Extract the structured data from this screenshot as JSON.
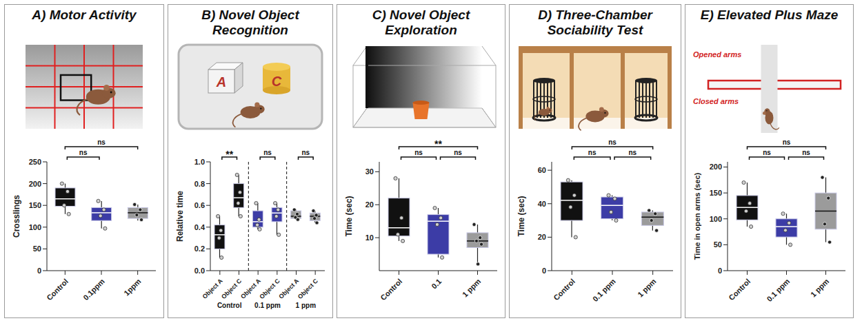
{
  "chart_data": [
    {
      "type": "box",
      "title": "A) Motor Activity",
      "y_label": "Crosslings",
      "categories": [
        "Control",
        "0.1ppm",
        "1ppm"
      ],
      "colors": [
        "#111111",
        "#3c3ca6",
        "#9b9b9b"
      ],
      "min": [
        130,
        97,
        115
      ],
      "q1": [
        148,
        115,
        120
      ],
      "median": [
        165,
        133,
        133
      ],
      "q3": [
        190,
        145,
        145
      ],
      "max": [
        200,
        160,
        152
      ],
      "points": [
        [
          200,
          182,
          150,
          130
        ],
        [
          160,
          140,
          126,
          97
        ],
        [
          152,
          140,
          128,
          117
        ]
      ],
      "ylim": [
        0,
        250
      ],
      "yticks": [
        0,
        50,
        100,
        150,
        200,
        250
      ],
      "comparisons": [
        {
          "pair": [
            0,
            1
          ],
          "label": "ns"
        },
        {
          "pair": [
            0,
            2
          ],
          "label": "ns"
        }
      ]
    },
    {
      "type": "box",
      "title": "B) Novel Object Recognition",
      "y_label": "Relative time",
      "illustration_labels": [
        "A",
        "C"
      ],
      "categories": [
        "Object A",
        "Object C",
        "Object A",
        "Object C",
        "Object A",
        "Object C"
      ],
      "groups": [
        "Control",
        "0.1 ppm",
        "1 ppm"
      ],
      "colors": [
        "#111111",
        "#111111",
        "#3c3ca6",
        "#3c3ca6",
        "#9b9b9b",
        "#9b9b9b"
      ],
      "min": [
        0.12,
        0.5,
        0.38,
        0.33,
        0.47,
        0.44
      ],
      "q1": [
        0.2,
        0.58,
        0.4,
        0.45,
        0.48,
        0.46
      ],
      "median": [
        0.33,
        0.67,
        0.45,
        0.53,
        0.5,
        0.5
      ],
      "q3": [
        0.42,
        0.8,
        0.55,
        0.58,
        0.55,
        0.53
      ],
      "max": [
        0.5,
        0.88,
        0.62,
        0.62,
        0.56,
        0.55
      ],
      "points": [
        [
          0.5,
          0.37,
          0.3,
          0.12
        ],
        [
          0.88,
          0.72,
          0.62,
          0.5
        ],
        [
          0.62,
          0.47,
          0.42,
          0.38
        ],
        [
          0.62,
          0.56,
          0.5,
          0.33
        ],
        [
          0.56,
          0.52,
          0.49,
          0.47
        ],
        [
          0.55,
          0.51,
          0.48,
          0.44
        ]
      ],
      "ylim": [
        0,
        1
      ],
      "yticks": [
        {
          "value": 0,
          "label": "0.0"
        },
        0.2,
        0.4,
        0.6,
        0.8,
        {
          "value": 1,
          "label": "1.0"
        }
      ],
      "comparisons": [
        {
          "pair": [
            0,
            1
          ],
          "label": "**"
        },
        {
          "pair": [
            2,
            3
          ],
          "label": "ns"
        },
        {
          "pair": [
            4,
            5
          ],
          "label": "ns"
        }
      ]
    },
    {
      "type": "box",
      "title": "C) Novel Object Exploration",
      "y_label": "Time (sec)",
      "categories": [
        "Control",
        "0.1",
        "1 ppm"
      ],
      "colors": [
        "#111111",
        "#3c3ca6",
        "#9b9b9b"
      ],
      "min": [
        9,
        4,
        2
      ],
      "q1": [
        10.5,
        5,
        7
      ],
      "median": [
        13,
        15,
        9
      ],
      "q3": [
        22,
        17,
        11.5
      ],
      "max": [
        28,
        19,
        14
      ],
      "points": [
        [
          28,
          16,
          11,
          9
        ],
        [
          19,
          16,
          14,
          4
        ],
        [
          14,
          10,
          9,
          8,
          2
        ]
      ],
      "ylim": [
        0,
        33
      ],
      "yticks": [
        10,
        20,
        30
      ],
      "comparisons": [
        {
          "pair": [
            0,
            1
          ],
          "label": "ns"
        },
        {
          "pair": [
            1,
            2
          ],
          "label": "ns"
        },
        {
          "pair": [
            0,
            2
          ],
          "label": "**"
        }
      ]
    },
    {
      "type": "box",
      "title": "D) Three-Chamber Sociability Test",
      "y_label": "Time (sec)",
      "categories": [
        "Control",
        "0.1 ppm",
        "1 ppm"
      ],
      "colors": [
        "#111111",
        "#3c3ca6",
        "#9b9b9b"
      ],
      "min": [
        20,
        30,
        24
      ],
      "q1": [
        30,
        31,
        27
      ],
      "median": [
        42,
        39,
        32
      ],
      "q3": [
        53,
        44,
        35
      ],
      "max": [
        54,
        45,
        36
      ],
      "points": [
        [
          54,
          45,
          38,
          20
        ],
        [
          45,
          43,
          35,
          30
        ],
        [
          36,
          34,
          30,
          24
        ]
      ],
      "ylim": [
        0,
        65
      ],
      "yticks": [
        0,
        20,
        40,
        60
      ],
      "comparisons": [
        {
          "pair": [
            0,
            1
          ],
          "label": "ns"
        },
        {
          "pair": [
            1,
            2
          ],
          "label": "ns"
        },
        {
          "pair": [
            0,
            2
          ],
          "label": "ns"
        }
      ]
    },
    {
      "type": "box",
      "title": "E) Elevated Plus Maze",
      "y_label": "Time in open arms (sec)",
      "illustration_labels": [
        "Opened arms",
        "Closed arms"
      ],
      "categories": [
        "Control",
        "0.1 ppm",
        "1 ppm"
      ],
      "colors": [
        "#111111",
        "#3c3ca6",
        "#9b9b9b"
      ],
      "min": [
        85,
        50,
        55
      ],
      "q1": [
        98,
        65,
        80
      ],
      "median": [
        122,
        85,
        115
      ],
      "q3": [
        145,
        100,
        150
      ],
      "max": [
        170,
        110,
        180
      ],
      "points": [
        [
          170,
          130,
          115,
          85
        ],
        [
          110,
          92,
          78,
          50
        ],
        [
          180,
          140,
          90,
          55
        ]
      ],
      "ylim": [
        0,
        210
      ],
      "yticks": [
        0,
        50,
        100,
        150,
        200
      ],
      "comparisons": [
        {
          "pair": [
            0,
            1
          ],
          "label": "ns"
        },
        {
          "pair": [
            1,
            2
          ],
          "label": "ns"
        },
        {
          "pair": [
            0,
            2
          ],
          "label": "ns"
        }
      ]
    }
  ]
}
